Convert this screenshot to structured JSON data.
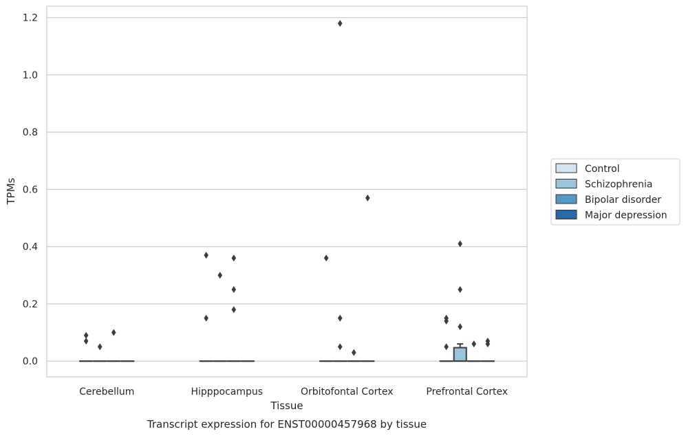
{
  "chart_data": {
    "type": "box",
    "xlabel": "Tissue",
    "ylabel": "TPMs",
    "caption": "Transcript expression for ENST00000457968 by tissue",
    "ylim": [
      -0.055,
      1.24
    ],
    "yticks": [
      "0.0",
      "0.2",
      "0.4",
      "0.6",
      "0.8",
      "1.0",
      "1.2"
    ],
    "ytick_values": [
      0.0,
      0.2,
      0.4,
      0.6,
      0.8,
      1.0,
      1.2
    ],
    "grid": true,
    "legend_position": "right",
    "categories": [
      "Cerebellum",
      "Hipppocampus",
      "Orbitofontal Cortex",
      "Prefrontal Cortex"
    ],
    "series": [
      {
        "name": "Control",
        "color": "#d4e3f1",
        "boxes": [
          {
            "q1": 0,
            "median": 0,
            "q3": 0,
            "whisker_low": 0,
            "whisker_high": 0,
            "outliers": [
              0.09,
              0.07
            ]
          },
          {
            "q1": 0,
            "median": 0,
            "q3": 0,
            "whisker_low": 0,
            "whisker_high": 0,
            "outliers": [
              0.37,
              0.15
            ]
          },
          {
            "q1": 0,
            "median": 0,
            "q3": 0,
            "whisker_low": 0,
            "whisker_high": 0,
            "outliers": [
              0.36
            ]
          },
          {
            "q1": 0,
            "median": 0,
            "q3": 0,
            "whisker_low": 0,
            "whisker_high": 0,
            "outliers": [
              0.15,
              0.14,
              0.05
            ]
          }
        ]
      },
      {
        "name": "Schizophrenia",
        "color": "#9ac3de",
        "boxes": [
          {
            "q1": 0,
            "median": 0,
            "q3": 0,
            "whisker_low": 0,
            "whisker_high": 0,
            "outliers": [
              0.05
            ]
          },
          {
            "q1": 0,
            "median": 0,
            "q3": 0,
            "whisker_low": 0,
            "whisker_high": 0,
            "outliers": [
              0.3
            ]
          },
          {
            "q1": 0,
            "median": 0,
            "q3": 0,
            "whisker_low": 0,
            "whisker_high": 0,
            "outliers": [
              1.18,
              0.15,
              0.05
            ]
          },
          {
            "q1": 0,
            "median": 0,
            "q3": 0.047,
            "whisker_low": 0,
            "whisker_high": 0.06,
            "outliers": [
              0.41,
              0.25,
              0.12
            ]
          }
        ]
      },
      {
        "name": "Bipolar disorder",
        "color": "#5597c6",
        "boxes": [
          {
            "q1": 0,
            "median": 0,
            "q3": 0,
            "whisker_low": 0,
            "whisker_high": 0,
            "outliers": [
              0.1
            ]
          },
          {
            "q1": 0,
            "median": 0,
            "q3": 0,
            "whisker_low": 0,
            "whisker_high": 0,
            "outliers": [
              0.36,
              0.25,
              0.18
            ]
          },
          {
            "q1": 0,
            "median": 0,
            "q3": 0,
            "whisker_low": 0,
            "whisker_high": 0,
            "outliers": [
              0.03
            ]
          },
          {
            "q1": 0,
            "median": 0,
            "q3": 0,
            "whisker_low": 0,
            "whisker_high": 0,
            "outliers": [
              0.06
            ]
          }
        ]
      },
      {
        "name": "Major depression",
        "color": "#2869a8",
        "boxes": [
          {
            "q1": 0,
            "median": 0,
            "q3": 0,
            "whisker_low": 0,
            "whisker_high": 0,
            "outliers": []
          },
          {
            "q1": 0,
            "median": 0,
            "q3": 0,
            "whisker_low": 0,
            "whisker_high": 0,
            "outliers": []
          },
          {
            "q1": 0,
            "median": 0,
            "q3": 0,
            "whisker_low": 0,
            "whisker_high": 0,
            "outliers": [
              0.57
            ]
          },
          {
            "q1": 0,
            "median": 0,
            "q3": 0,
            "whisker_low": 0,
            "whisker_high": 0,
            "outliers": [
              0.07,
              0.06
            ]
          }
        ]
      }
    ]
  }
}
